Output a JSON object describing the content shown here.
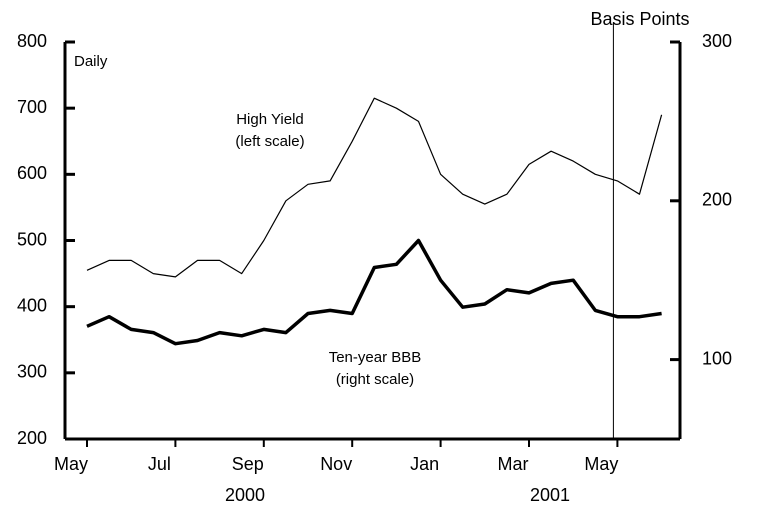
{
  "chart_data": {
    "type": "line",
    "y_label": "Daily",
    "y2_label": "Basis Points",
    "categories": [
      "May",
      null,
      null,
      null,
      "Jul",
      null,
      null,
      null,
      "Sep",
      null,
      null,
      null,
      "Nov",
      null,
      null,
      null,
      "Jan",
      null,
      null,
      null,
      "Mar",
      null,
      null,
      null,
      "May",
      null,
      null
    ],
    "years": [
      "2000",
      "2001"
    ],
    "series": [
      {
        "name": "High Yield",
        "annotation": "(left scale)",
        "color": "#000000",
        "axis": "y",
        "values": [
          455,
          470,
          470,
          450,
          445,
          470,
          470,
          450,
          500,
          560,
          585,
          590,
          650,
          715,
          700,
          680,
          600,
          570,
          555,
          570,
          615,
          635,
          620,
          600,
          590,
          570,
          690
        ]
      },
      {
        "name": "Ten-year BBB",
        "annotation": "(right scale)",
        "color": "#000000",
        "axis": "y2",
        "values": [
          121,
          127,
          119,
          117,
          110,
          112,
          117,
          115,
          119,
          117,
          129,
          131,
          129,
          158,
          160,
          175,
          150,
          133,
          135,
          144,
          142,
          148,
          150,
          131,
          127,
          127,
          129
        ]
      }
    ],
    "ylim": [
      200,
      800
    ],
    "yticks": [
      200,
      300,
      400,
      500,
      600,
      700,
      800
    ],
    "y2lim": [
      50,
      300
    ],
    "y2ticks": [
      100,
      200,
      300
    ]
  }
}
